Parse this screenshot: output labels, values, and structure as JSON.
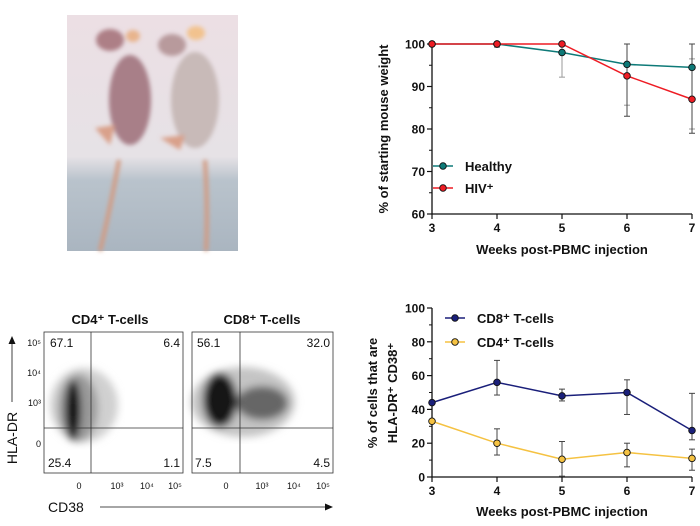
{
  "photo": {
    "description_icon": "mice-photo"
  },
  "flow": {
    "y_axis_label": "HLA-DR",
    "x_axis_label": "CD38",
    "y_ticks": [
      "10⁵",
      "10⁴",
      "10³",
      "0"
    ],
    "x_ticks": [
      "0",
      "10³",
      "10⁴",
      "10⁵"
    ],
    "panels": [
      {
        "title": "CD4⁺ T-cells",
        "quadrants": {
          "upper_left": "67.1",
          "upper_right": "6.4",
          "lower_left": "25.4",
          "lower_right": "1.1"
        }
      },
      {
        "title": "CD8⁺ T-cells",
        "quadrants": {
          "upper_left": "56.1",
          "upper_right": "32.0",
          "lower_left": "7.5",
          "lower_right": "4.5"
        }
      }
    ]
  },
  "chart_data": [
    {
      "type": "line",
      "xlabel": "Weeks post-PBMC injection",
      "ylabel": "% of starting mouse weight",
      "x": [
        3,
        4,
        5,
        6,
        7
      ],
      "xlim": [
        3,
        7
      ],
      "ylim": [
        60,
        100
      ],
      "yticks": [
        60,
        70,
        80,
        90,
        100
      ],
      "legend": "bottom-left",
      "series": [
        {
          "name": "Healthy",
          "color": "#0e7a78",
          "values": [
            100,
            100,
            98,
            95.2,
            94.5
          ],
          "err_low": [
            100,
            99.2,
            92.2,
            85.6,
            80
          ],
          "err_high": [
            100,
            100,
            100,
            100,
            96.5
          ]
        },
        {
          "name": "HIV⁺",
          "color": "#ee1c24",
          "values": [
            100,
            100,
            100,
            92.5,
            87
          ],
          "err_low": [
            100,
            100,
            100,
            83,
            79
          ],
          "err_high": [
            100,
            100,
            100,
            100,
            100
          ]
        }
      ]
    },
    {
      "type": "line",
      "xlabel": "Weeks post-PBMC injection",
      "ylabel_lines": [
        "% of cells that are",
        "HLA-DR⁺ CD38⁺"
      ],
      "x": [
        3,
        4,
        5,
        6,
        7
      ],
      "xlim": [
        3,
        7
      ],
      "ylim": [
        0,
        100
      ],
      "yticks": [
        0,
        20,
        40,
        60,
        80,
        100
      ],
      "legend": "top-left",
      "series": [
        {
          "name": "CD8⁺ T-cells",
          "color": "#1a1f7a",
          "values": [
            44,
            56,
            48,
            50,
            27.5
          ],
          "err_low": [
            44,
            48.5,
            45,
            37,
            22
          ],
          "err_high": [
            44,
            69,
            52,
            57.5,
            49.5
          ]
        },
        {
          "name": "CD4⁺ T-cells",
          "color": "#f5c242",
          "values": [
            33,
            20,
            10.5,
            14.5,
            11
          ],
          "err_low": [
            33,
            13,
            0.5,
            6,
            4
          ],
          "err_high": [
            33,
            28.5,
            21,
            20,
            16.5
          ]
        }
      ]
    }
  ]
}
